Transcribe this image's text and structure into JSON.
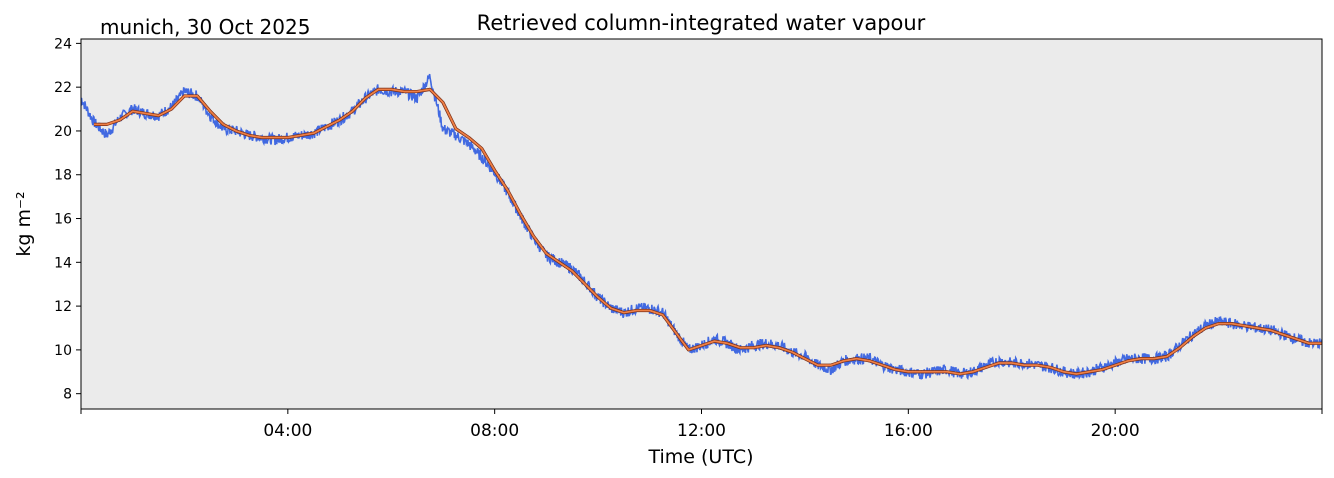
{
  "chart_data": {
    "type": "line",
    "title": "Retrieved column-integrated water vapour",
    "subtitle": "munich, 30 Oct 2025",
    "xlabel": "Time (UTC)",
    "ylabel": "kg m⁻²",
    "xlim_hours": [
      0,
      24
    ],
    "ylim": [
      7.3,
      24.2
    ],
    "x_ticks": [
      {
        "hour": 4,
        "label": "04:00"
      },
      {
        "hour": 8,
        "label": "08:00"
      },
      {
        "hour": 12,
        "label": "12:00"
      },
      {
        "hour": 16,
        "label": "16:00"
      },
      {
        "hour": 20,
        "label": "20:00"
      }
    ],
    "x_minor_ticks_hours": [
      0,
      24
    ],
    "y_ticks": [
      8,
      10,
      12,
      14,
      16,
      18,
      20,
      22,
      24
    ],
    "y_tick_labels": [
      "8",
      "10",
      "12",
      "14",
      "16",
      "18",
      "20",
      "22",
      "24"
    ],
    "background": "#ebebeb",
    "grid": false,
    "series": [
      {
        "color": "#4169e1",
        "noise": 0.25,
        "x": [
          0.0,
          0.25,
          0.5,
          0.75,
          1.0,
          1.25,
          1.5,
          1.75,
          2.0,
          2.25,
          2.5,
          2.75,
          3.0,
          3.25,
          3.5,
          3.75,
          4.0,
          4.25,
          4.5,
          4.75,
          5.0,
          5.25,
          5.5,
          5.75,
          6.0,
          6.25,
          6.5,
          6.75,
          7.0,
          7.25,
          7.5,
          7.75,
          8.0,
          8.25,
          8.5,
          8.75,
          9.0,
          9.25,
          9.5,
          9.75,
          10.0,
          10.25,
          10.5,
          10.75,
          11.0,
          11.25,
          11.5,
          11.75,
          12.0,
          12.25,
          12.5,
          12.75,
          13.0,
          13.25,
          13.5,
          13.75,
          14.0,
          14.25,
          14.5,
          14.75,
          15.0,
          15.25,
          15.5,
          15.75,
          16.0,
          16.25,
          16.5,
          16.75,
          17.0,
          17.25,
          17.5,
          17.75,
          18.0,
          18.25,
          18.5,
          18.75,
          19.0,
          19.25,
          19.5,
          19.75,
          20.0,
          20.25,
          20.5,
          20.75,
          21.0,
          21.25,
          21.5,
          21.75,
          22.0,
          22.25,
          22.5,
          22.75,
          23.0,
          23.25,
          23.5,
          23.75,
          24.0
        ],
        "y": [
          21.5,
          20.4,
          19.8,
          20.6,
          21.0,
          20.8,
          20.7,
          21.1,
          21.8,
          21.6,
          20.7,
          20.1,
          20.0,
          19.8,
          19.7,
          19.6,
          19.7,
          19.8,
          19.9,
          20.2,
          20.5,
          20.9,
          21.5,
          21.9,
          21.8,
          21.8,
          21.5,
          22.5,
          20.1,
          19.8,
          19.4,
          18.8,
          18.1,
          17.2,
          16.1,
          15.1,
          14.3,
          14.0,
          13.7,
          13.1,
          12.4,
          11.9,
          11.7,
          11.9,
          11.9,
          11.7,
          10.8,
          10.0,
          10.2,
          10.5,
          10.3,
          10.0,
          10.2,
          10.3,
          10.2,
          9.9,
          9.7,
          9.3,
          9.1,
          9.5,
          9.6,
          9.6,
          9.3,
          9.1,
          9.0,
          8.9,
          9.0,
          9.1,
          8.9,
          9.0,
          9.3,
          9.5,
          9.4,
          9.4,
          9.3,
          9.2,
          9.0,
          8.9,
          9.0,
          9.2,
          9.4,
          9.6,
          9.6,
          9.6,
          9.7,
          10.2,
          10.7,
          11.1,
          11.3,
          11.2,
          11.1,
          11.0,
          10.9,
          10.7,
          10.5,
          10.3,
          10.3
        ]
      },
      {
        "color": "#ee7f45",
        "x": [
          0.25,
          0.5,
          0.75,
          1.0,
          1.25,
          1.5,
          1.75,
          2.0,
          2.25,
          2.5,
          2.75,
          3.0,
          3.25,
          3.5,
          3.75,
          4.0,
          4.25,
          4.5,
          4.75,
          5.0,
          5.25,
          5.5,
          5.75,
          6.0,
          6.25,
          6.5,
          6.75,
          7.0,
          7.25,
          7.5,
          7.75,
          8.0,
          8.25,
          8.5,
          8.75,
          9.0,
          9.25,
          9.5,
          9.75,
          10.0,
          10.25,
          10.5,
          10.75,
          11.0,
          11.25,
          11.5,
          11.75,
          12.0,
          12.25,
          12.5,
          12.75,
          13.0,
          13.25,
          13.5,
          13.75,
          14.0,
          14.25,
          14.5,
          14.75,
          15.0,
          15.25,
          15.5,
          15.75,
          16.0,
          16.25,
          16.5,
          16.75,
          17.0,
          17.25,
          17.5,
          17.75,
          18.0,
          18.25,
          18.5,
          18.75,
          19.0,
          19.25,
          19.5,
          19.75,
          20.0,
          20.25,
          20.5,
          20.75,
          21.0,
          21.25,
          21.5,
          21.75,
          22.0,
          22.25,
          22.5,
          22.75,
          23.0,
          23.25,
          23.5,
          23.75,
          24.0
        ],
        "y": [
          20.3,
          20.3,
          20.5,
          20.9,
          20.8,
          20.7,
          21.0,
          21.6,
          21.6,
          20.9,
          20.3,
          20.0,
          19.8,
          19.7,
          19.7,
          19.7,
          19.8,
          19.9,
          20.2,
          20.5,
          20.9,
          21.5,
          21.9,
          21.9,
          21.8,
          21.8,
          21.9,
          21.3,
          20.1,
          19.7,
          19.2,
          18.2,
          17.3,
          16.2,
          15.2,
          14.4,
          14.0,
          13.6,
          13.0,
          12.4,
          11.9,
          11.7,
          11.8,
          11.8,
          11.6,
          10.8,
          10.0,
          10.2,
          10.4,
          10.3,
          10.1,
          10.1,
          10.2,
          10.1,
          9.9,
          9.6,
          9.3,
          9.3,
          9.5,
          9.6,
          9.5,
          9.3,
          9.1,
          9.0,
          9.0,
          9.0,
          9.0,
          8.9,
          9.0,
          9.2,
          9.4,
          9.4,
          9.3,
          9.3,
          9.2,
          9.0,
          8.9,
          9.0,
          9.1,
          9.3,
          9.5,
          9.6,
          9.6,
          9.7,
          10.1,
          10.6,
          11.0,
          11.2,
          11.2,
          11.1,
          11.0,
          10.9,
          10.7,
          10.5,
          10.3,
          10.3
        ]
      }
    ]
  }
}
